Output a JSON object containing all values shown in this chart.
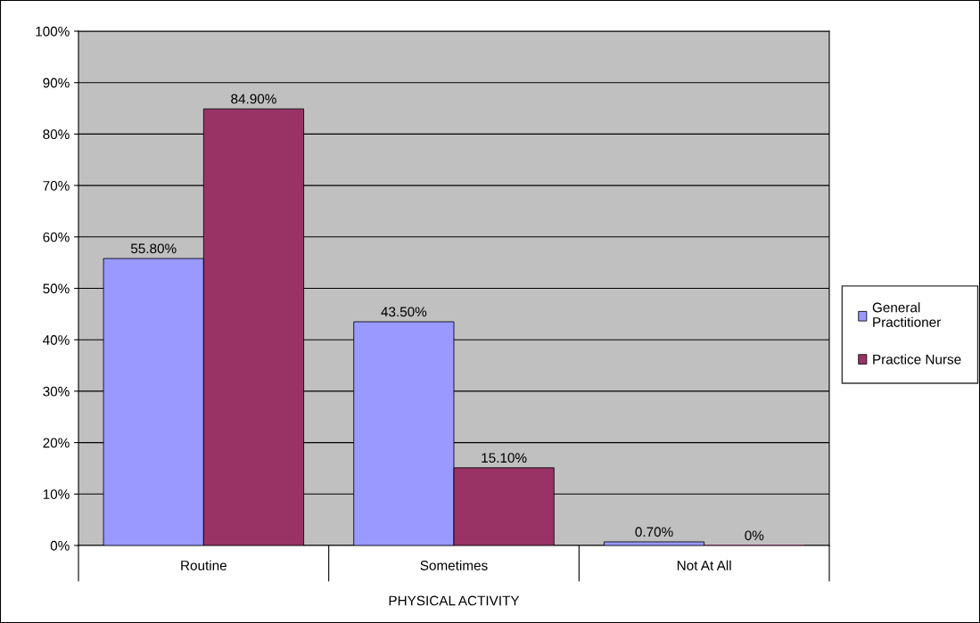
{
  "chart_data": {
    "type": "bar",
    "xlabel": "PHYSICAL ACTIVITY",
    "categories": [
      "Routine",
      "Sometimes",
      "Not At All"
    ],
    "series": [
      {
        "name": "General Practitioner",
        "color": "#9999ff",
        "values": [
          55.8,
          43.5,
          0.7
        ],
        "value_labels": [
          "55.80%",
          "43.50%",
          "0.70%"
        ]
      },
      {
        "name": "Practice Nurse",
        "color": "#993366",
        "values": [
          84.9,
          15.1,
          0
        ],
        "value_labels": [
          "84.90%",
          "15.10%",
          "0%"
        ]
      }
    ],
    "ylim": [
      0,
      100
    ],
    "yticks": [
      {
        "value": 0,
        "label": "0%"
      },
      {
        "value": 10,
        "label": "10%"
      },
      {
        "value": 20,
        "label": "20%"
      },
      {
        "value": 30,
        "label": "30%"
      },
      {
        "value": 40,
        "label": "40%"
      },
      {
        "value": 50,
        "label": "50%"
      },
      {
        "value": 60,
        "label": "60%"
      },
      {
        "value": 70,
        "label": "70%"
      },
      {
        "value": 80,
        "label": "80%"
      },
      {
        "value": 90,
        "label": "90%"
      },
      {
        "value": 100,
        "label": "100%"
      }
    ],
    "grid": "y",
    "legend": "right"
  }
}
